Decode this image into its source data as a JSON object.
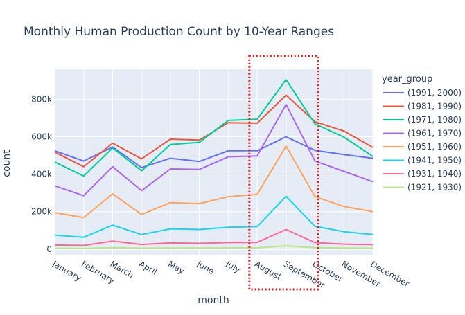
{
  "chart_data": {
    "type": "line",
    "title": "Monthly Human Production Count by 10-Year Ranges",
    "xlabel": "month",
    "ylabel": "count",
    "categories": [
      "January",
      "February",
      "March",
      "April",
      "May",
      "June",
      "July",
      "August",
      "September",
      "October",
      "November",
      "December"
    ],
    "y_ticks": [
      0,
      200000,
      400000,
      600000,
      800000
    ],
    "y_tick_labels": [
      "0",
      "200k",
      "400k",
      "600k",
      "800k"
    ],
    "ylim": [
      -30000,
      960000
    ],
    "grid": true,
    "legend": {
      "title": "year_group",
      "placement": "right"
    },
    "highlight_box": {
      "from_category": "August",
      "to_category": "October",
      "style": "dotted",
      "color": "#e3171c"
    },
    "series": [
      {
        "name": "(1991, 2000)",
        "color": "#636efa",
        "values": [
          525000,
          470000,
          545000,
          435000,
          485000,
          468000,
          525000,
          525000,
          600000,
          527000,
          505000,
          485000
        ]
      },
      {
        "name": "(1981, 1990)",
        "color": "#ef553b",
        "values": [
          518000,
          440000,
          565000,
          482000,
          587000,
          582000,
          675000,
          672000,
          822000,
          680000,
          630000,
          543000
        ]
      },
      {
        "name": "(1971, 1980)",
        "color": "#00cc96",
        "values": [
          465000,
          390000,
          540000,
          418000,
          558000,
          570000,
          687000,
          693000,
          905000,
          668000,
          598000,
          495000
        ]
      },
      {
        "name": "(1961, 1970)",
        "color": "#ab63fa",
        "values": [
          338000,
          285000,
          440000,
          312000,
          428000,
          425000,
          493000,
          497000,
          772000,
          470000,
          415000,
          360000
        ]
      },
      {
        "name": "(1951, 1960)",
        "color": "#ffa15a",
        "values": [
          195000,
          168000,
          295000,
          185000,
          248000,
          243000,
          280000,
          292000,
          550000,
          280000,
          228000,
          200000
        ]
      },
      {
        "name": "(1941, 1950)",
        "color": "#19d3f3",
        "values": [
          75000,
          63000,
          128000,
          78000,
          108000,
          105000,
          117000,
          120000,
          282000,
          122000,
          93000,
          78000
        ]
      },
      {
        "name": "(1931, 1940)",
        "color": "#ff6692",
        "values": [
          22000,
          20000,
          43000,
          25000,
          33000,
          31000,
          35000,
          36000,
          105000,
          35000,
          27000,
          24000
        ]
      },
      {
        "name": "(1921, 1930)",
        "color": "#b6e880",
        "values": [
          4000,
          4000,
          8000,
          5000,
          6000,
          6000,
          7000,
          7000,
          18000,
          8000,
          6000,
          5000
        ]
      }
    ]
  }
}
